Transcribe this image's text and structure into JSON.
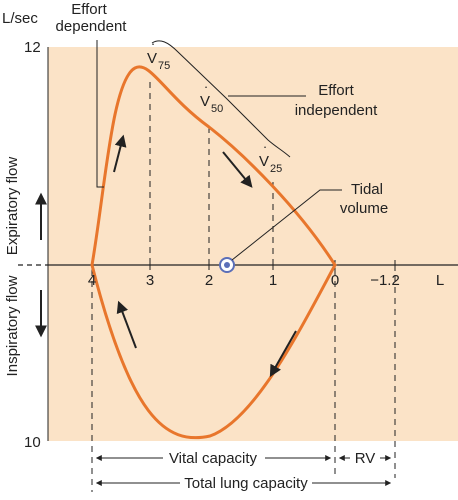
{
  "chart_data": {
    "type": "flow-volume-loop",
    "y_unit": "L/sec",
    "y_top_tick": "12",
    "y_bottom_tick": "10",
    "x_unit": "L",
    "x_ticks": [
      "4",
      "3",
      "2",
      "1",
      "0",
      "−1.2"
    ],
    "expiratory_label": "Expiratory flow",
    "inspiratory_label": "Inspiratory flow",
    "annotations": {
      "effort_dependent": [
        "Effort",
        "dependent"
      ],
      "effort_independent": [
        "Effort",
        "independent"
      ],
      "tidal_volume": [
        "Tidal",
        "volume"
      ],
      "v75": {
        "base": "V",
        "sub": "75"
      },
      "v50": {
        "base": "V",
        "sub": "50"
      },
      "v25": {
        "base": "V",
        "sub": "25"
      }
    },
    "capacities": {
      "vital_capacity": "Vital capacity",
      "rv": "RV",
      "total_lung_capacity": "Total lung capacity"
    },
    "colors": {
      "background": "#fbe3c7",
      "loop": "#e8762c",
      "tidal_marker": "#5b6fb8",
      "ink": "#222222"
    }
  }
}
